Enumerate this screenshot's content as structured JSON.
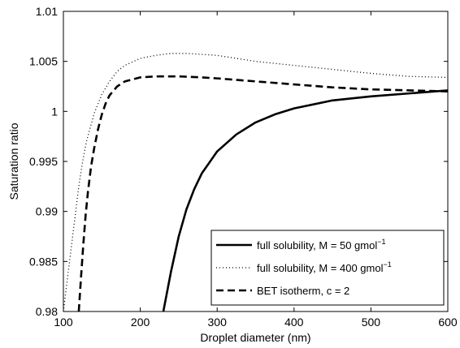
{
  "chart_data": {
    "type": "line",
    "title": "",
    "xlabel": "Droplet diameter (nm)",
    "ylabel": "Saturation ratio",
    "xlim": [
      100,
      600
    ],
    "ylim": [
      0.98,
      1.01
    ],
    "xticks": [
      100,
      200,
      300,
      400,
      500,
      600
    ],
    "yticks": [
      0.98,
      0.985,
      0.99,
      0.995,
      1,
      1.005,
      1.01
    ],
    "xtick_labels": [
      "100",
      "200",
      "300",
      "400",
      "500",
      "600"
    ],
    "ytick_labels": [
      "0.98",
      "0.985",
      "0.99",
      "0.995",
      "1",
      "1.005",
      "1.01"
    ],
    "grid": false,
    "legend_position": "bottom-right",
    "series": [
      {
        "name": "full solubility, M = 50 gmol",
        "name_superscript": "−1",
        "style": "solid",
        "color": "#000000",
        "x": [
          230,
          240,
          250,
          260,
          270,
          280,
          300,
          325,
          350,
          375,
          400,
          450,
          500,
          550,
          600
        ],
        "y": [
          0.98,
          0.984,
          0.9875,
          0.9902,
          0.9922,
          0.9938,
          0.996,
          0.9977,
          0.9989,
          0.9997,
          1.0003,
          1.0011,
          1.0015,
          1.0018,
          1.0021
        ]
      },
      {
        "name": "full solubility, M = 400 gmol",
        "name_superscript": "−1",
        "style": "dotted",
        "color": "#000000",
        "x": [
          100,
          104,
          108,
          112,
          116,
          120,
          125,
          130,
          140,
          150,
          160,
          170,
          180,
          200,
          220,
          240,
          260,
          280,
          300,
          325,
          350,
          400,
          450,
          500,
          550,
          600
        ],
        "y": [
          0.98,
          0.9825,
          0.985,
          0.9875,
          0.99,
          0.9925,
          0.995,
          0.997,
          0.9998,
          1.0017,
          1.003,
          1.004,
          1.0046,
          1.0053,
          1.0056,
          1.0058,
          1.0058,
          1.0057,
          1.0056,
          1.0053,
          1.005,
          1.0046,
          1.0042,
          1.0038,
          1.0035,
          1.0034
        ]
      },
      {
        "name": "BET isotherm, c = 2",
        "name_superscript": "",
        "style": "dashed",
        "color": "#000000",
        "x": [
          120,
          123,
          126,
          129,
          132,
          136,
          140,
          145,
          150,
          155,
          160,
          170,
          180,
          200,
          220,
          250,
          280,
          300,
          350,
          400,
          450,
          500,
          550,
          600
        ],
        "y": [
          0.98,
          0.9835,
          0.9868,
          0.9897,
          0.992,
          0.9945,
          0.9963,
          0.9982,
          0.9997,
          1.0008,
          1.0016,
          1.0025,
          1.003,
          1.0034,
          1.0035,
          1.0035,
          1.0034,
          1.0033,
          1.003,
          1.0027,
          1.0024,
          1.0022,
          1.0021,
          1.002
        ]
      }
    ]
  }
}
